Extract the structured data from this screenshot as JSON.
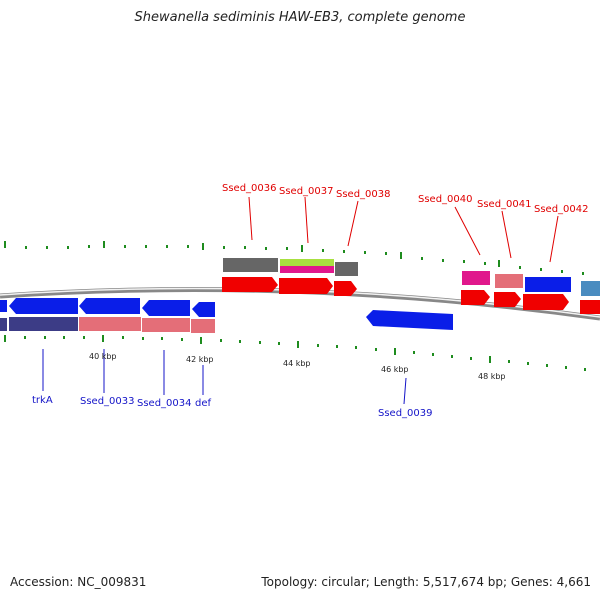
{
  "title": "Shewanella sediminis HAW-EB3, complete genome",
  "footer": {
    "accession": "Accession: NC_009831",
    "summary": "Topology: circular; Length: 5,517,674 bp; Genes: 4,661"
  },
  "colors": {
    "blue_gene": "#0a1ee8",
    "red_gene": "#f00000",
    "pink_gene": "#e46e78",
    "gray_gene": "#666666",
    "magenta_gene": "#e0188c",
    "green_gene": "#a8e040",
    "steel_gene": "#4a8cc0",
    "navy_gene": "#3c3c86",
    "tick_green": "#1e8c1e",
    "top_label": "#e00000",
    "bottom_label": "#1414c8"
  },
  "scale_labels": [
    "40 kbp",
    "42 kbp",
    "44 kbp",
    "46 kbp",
    "48 kbp"
  ],
  "top_labels": [
    "Ssed_0036",
    "Ssed_0037",
    "Ssed_0038",
    "Ssed_0040",
    "Ssed_0041",
    "Ssed_0042"
  ],
  "bottom_labels": [
    "trkA",
    "Ssed_0033",
    "Ssed_0034",
    "def",
    "Ssed_0039"
  ]
}
